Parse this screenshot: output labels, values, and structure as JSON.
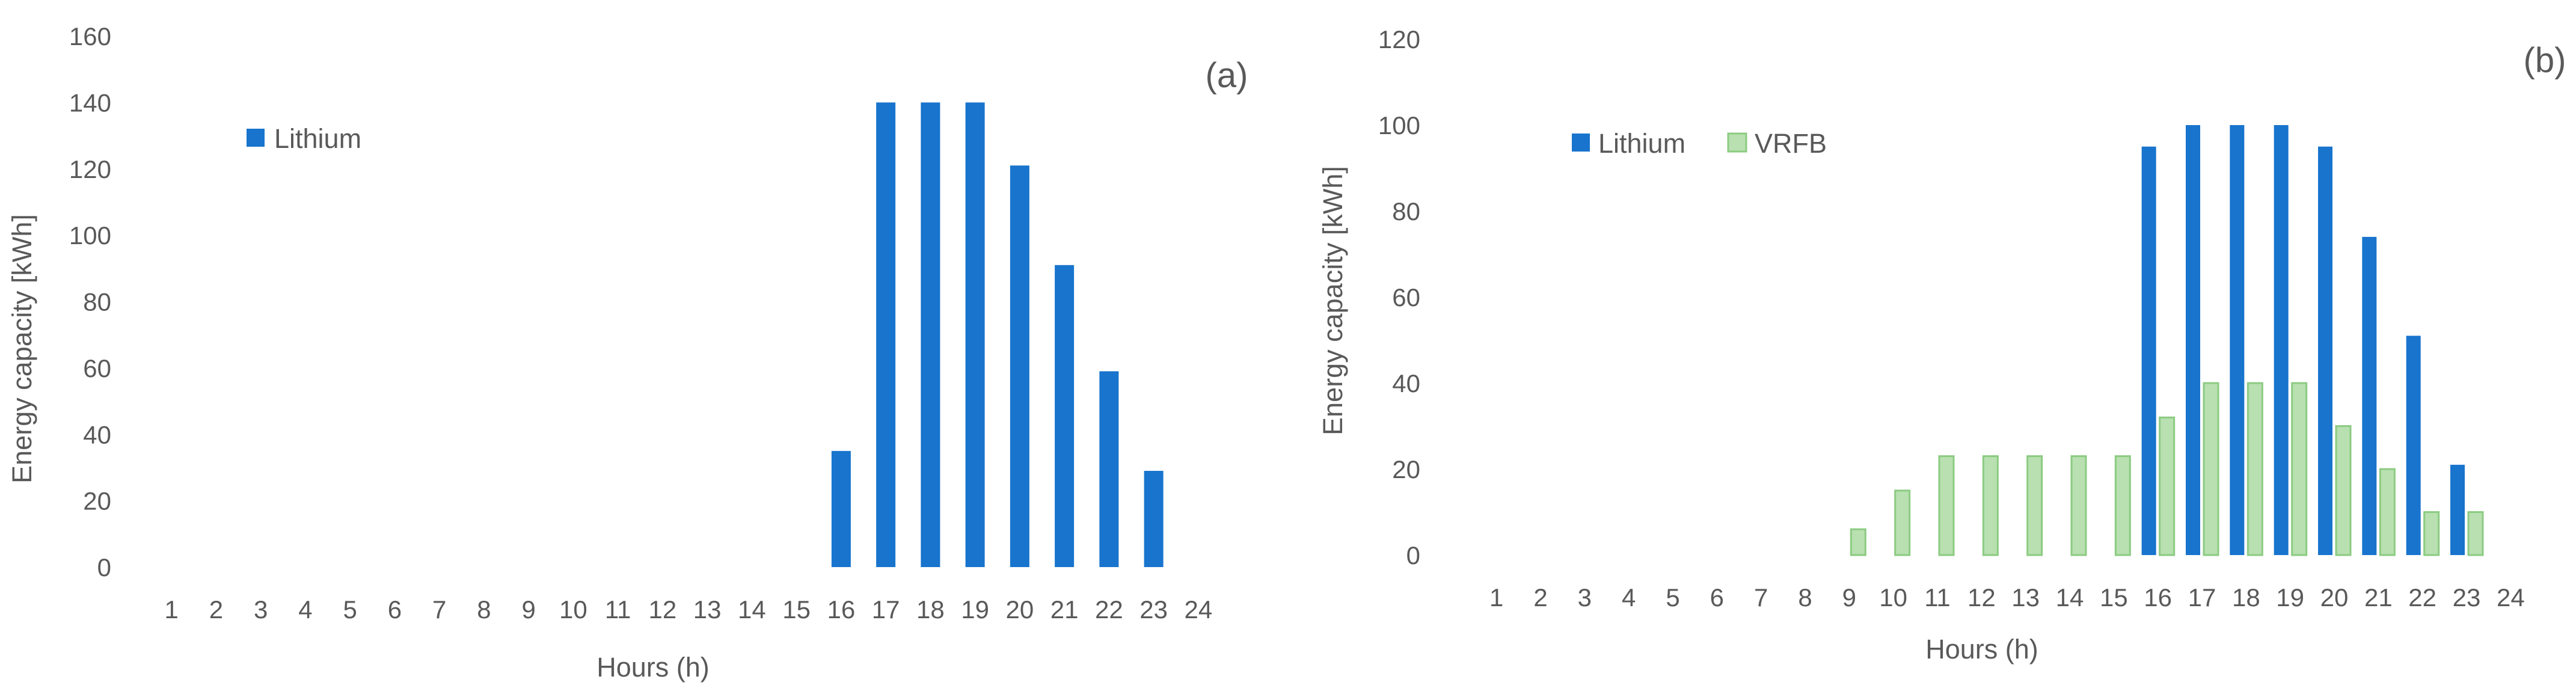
{
  "chart_data": [
    {
      "type": "bar",
      "panel_label": "(a)",
      "xlabel": "Hours (h)",
      "ylabel": "Energy capacity [kWh]",
      "ylim": [
        0,
        160
      ],
      "yticks": [
        "0",
        "20",
        "40",
        "60",
        "80",
        "100",
        "120",
        "140",
        "160"
      ],
      "categories": [
        "1",
        "2",
        "3",
        "4",
        "5",
        "6",
        "7",
        "8",
        "9",
        "10",
        "11",
        "12",
        "13",
        "14",
        "15",
        "16",
        "17",
        "18",
        "19",
        "20",
        "21",
        "22",
        "23",
        "24"
      ],
      "grid": false,
      "legend_position": "top-left",
      "series": [
        {
          "name": "Lithium",
          "color": "#1874CD",
          "values": [
            0,
            0,
            0,
            0,
            0,
            0,
            0,
            0,
            0,
            0,
            0,
            0,
            0,
            0,
            0,
            35,
            140,
            140,
            140,
            121,
            91,
            59,
            29,
            0
          ]
        }
      ]
    },
    {
      "type": "bar",
      "panel_label": "(b)",
      "xlabel": "Hours (h)",
      "ylabel": "Energy capacity [kWh]",
      "ylim": [
        0,
        120
      ],
      "yticks": [
        "0",
        "20",
        "40",
        "60",
        "80",
        "100",
        "120"
      ],
      "categories": [
        "1",
        "2",
        "3",
        "4",
        "5",
        "6",
        "7",
        "8",
        "9",
        "10",
        "11",
        "12",
        "13",
        "14",
        "15",
        "16",
        "17",
        "18",
        "19",
        "20",
        "21",
        "22",
        "23",
        "24"
      ],
      "grid": false,
      "legend_position": "top-left",
      "series": [
        {
          "name": "Lithium",
          "color": "#1874CD",
          "values": [
            0,
            0,
            0,
            0,
            0,
            0,
            0,
            0,
            0,
            0,
            0,
            0,
            0,
            0,
            0,
            95,
            100,
            100,
            100,
            95,
            74,
            51,
            21,
            0
          ]
        },
        {
          "name": "VRFB",
          "color": "#B8E0B0",
          "border_color": "#8CCB82",
          "values": [
            0,
            0,
            0,
            0,
            0,
            0,
            0,
            0,
            6,
            15,
            23,
            23,
            23,
            23,
            23,
            32,
            40,
            40,
            40,
            30,
            20,
            10,
            10,
            0
          ]
        }
      ]
    }
  ]
}
